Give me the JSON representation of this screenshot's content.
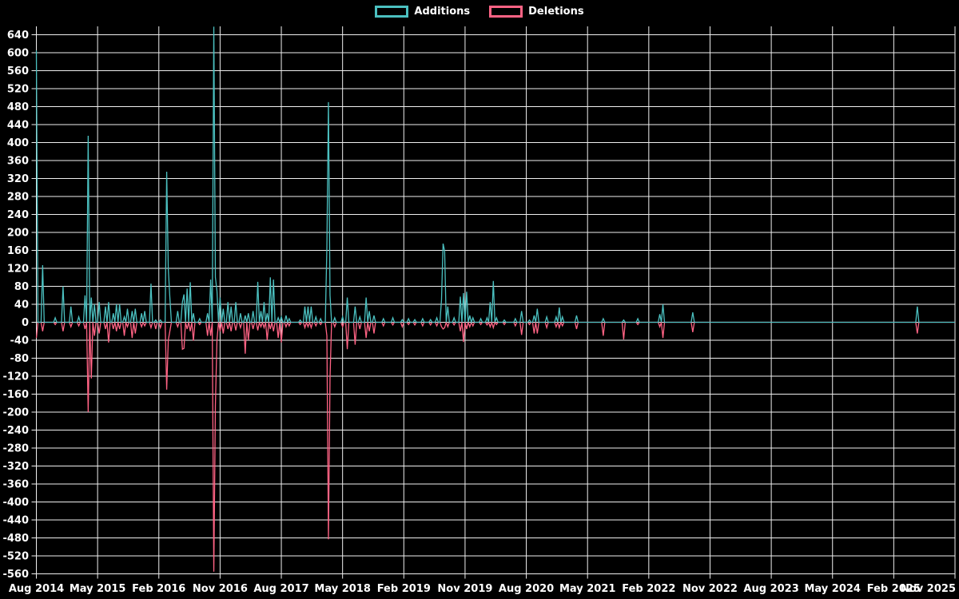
{
  "chart_data": {
    "type": "line",
    "title": "",
    "background_color": "#000000",
    "grid_color": "#efefef",
    "text_color": "#ffffff",
    "series": [
      {
        "name": "Additions",
        "color": "#4bc0c0"
      },
      {
        "name": "Deletions",
        "color": "#ff6384"
      }
    ],
    "legend_position": "top-center",
    "x_axis": {
      "tick_labels": [
        "Aug 2014",
        "May 2015",
        "Feb 2016",
        "Nov 2016",
        "Aug 2017",
        "May 2018",
        "Feb 2019",
        "Nov 2019",
        "Aug 2020",
        "May 2021",
        "Feb 2022",
        "Nov 2022",
        "Aug 2023",
        "May 2024",
        "Feb 2025",
        "Nov 2025"
      ],
      "weeks_per_tick": 39,
      "total_weeks": 585
    },
    "y_axis": {
      "min": -560,
      "max": 640,
      "step": 40,
      "tick_labels": [
        640,
        600,
        560,
        520,
        480,
        440,
        400,
        360,
        320,
        280,
        240,
        200,
        160,
        120,
        80,
        40,
        0,
        -40,
        -80,
        -120,
        -160,
        -200,
        -240,
        -280,
        -320,
        -360,
        -400,
        -440,
        -480,
        -520,
        -560
      ]
    },
    "baseline": 0,
    "events_format": [
      "week_index",
      "additions",
      "deletions"
    ],
    "events": [
      [
        0,
        605,
        -35
      ],
      [
        4,
        127,
        -20
      ],
      [
        12,
        10,
        -5
      ],
      [
        17,
        80,
        -20
      ],
      [
        22,
        35,
        -10
      ],
      [
        27,
        12,
        -8
      ],
      [
        31,
        60,
        -15
      ],
      [
        33,
        415,
        -200
      ],
      [
        35,
        55,
        -125
      ],
      [
        37,
        40,
        -30
      ],
      [
        40,
        45,
        -25
      ],
      [
        44,
        35,
        -15
      ],
      [
        46,
        45,
        -45
      ],
      [
        49,
        20,
        -15
      ],
      [
        51,
        40,
        -20
      ],
      [
        53,
        40,
        -15
      ],
      [
        56,
        12,
        -30
      ],
      [
        58,
        30,
        -10
      ],
      [
        61,
        25,
        -35
      ],
      [
        63,
        30,
        -25
      ],
      [
        67,
        20,
        -10
      ],
      [
        69,
        25,
        -8
      ],
      [
        73,
        86,
        -12
      ],
      [
        76,
        5,
        -15
      ],
      [
        79,
        5,
        -12
      ],
      [
        83,
        335,
        -150
      ],
      [
        84,
        120,
        -40
      ],
      [
        85,
        56,
        -20
      ],
      [
        90,
        25,
        -10
      ],
      [
        93,
        45,
        -60
      ],
      [
        94,
        62,
        -58
      ],
      [
        96,
        75,
        -15
      ],
      [
        98,
        89,
        -20
      ],
      [
        100,
        20,
        -41
      ],
      [
        104,
        8,
        -5
      ],
      [
        109,
        20,
        -30
      ],
      [
        111,
        95,
        -30
      ],
      [
        113,
        658,
        -555
      ],
      [
        114,
        100,
        -185
      ],
      [
        115,
        70,
        -40
      ],
      [
        117,
        55,
        -20
      ],
      [
        119,
        30,
        -25
      ],
      [
        122,
        45,
        -15
      ],
      [
        124,
        35,
        -20
      ],
      [
        127,
        45,
        -18
      ],
      [
        130,
        20,
        -12
      ],
      [
        133,
        15,
        -70
      ],
      [
        135,
        20,
        -40
      ],
      [
        138,
        25,
        -15
      ],
      [
        141,
        90,
        -18
      ],
      [
        143,
        25,
        -10
      ],
      [
        145,
        45,
        -12
      ],
      [
        147,
        20,
        -40
      ],
      [
        149,
        100,
        -15
      ],
      [
        151,
        95,
        -20
      ],
      [
        154,
        10,
        -35
      ],
      [
        156,
        12,
        -45
      ],
      [
        159,
        15,
        -10
      ],
      [
        161,
        8,
        -8
      ],
      [
        168,
        5,
        -5
      ],
      [
        171,
        35,
        -12
      ],
      [
        173,
        35,
        -10
      ],
      [
        175,
        35,
        -12
      ],
      [
        178,
        12,
        -8
      ],
      [
        181,
        8,
        -5
      ],
      [
        185,
        165,
        -30
      ],
      [
        186,
        490,
        -483
      ],
      [
        187,
        60,
        -125
      ],
      [
        190,
        10,
        -10
      ],
      [
        195,
        12,
        -10
      ],
      [
        198,
        55,
        -60
      ],
      [
        203,
        35,
        -50
      ],
      [
        206,
        12,
        -15
      ],
      [
        210,
        55,
        -35
      ],
      [
        212,
        25,
        -20
      ],
      [
        215,
        15,
        -25
      ],
      [
        221,
        8,
        -8
      ],
      [
        227,
        10,
        -6
      ],
      [
        233,
        6,
        -10
      ],
      [
        237,
        8,
        -5
      ],
      [
        241,
        6,
        -6
      ],
      [
        246,
        8,
        -8
      ],
      [
        251,
        6,
        -6
      ],
      [
        255,
        10,
        -8
      ],
      [
        258,
        50,
        -10
      ],
      [
        259,
        175,
        -15
      ],
      [
        260,
        158,
        -12
      ],
      [
        262,
        35,
        -10
      ],
      [
        266,
        10,
        -6
      ],
      [
        270,
        57,
        -20
      ],
      [
        272,
        65,
        -44
      ],
      [
        274,
        68,
        -15
      ],
      [
        276,
        15,
        -10
      ],
      [
        278,
        10,
        -8
      ],
      [
        283,
        8,
        -5
      ],
      [
        287,
        10,
        -6
      ],
      [
        289,
        45,
        -10
      ],
      [
        291,
        92,
        -12
      ],
      [
        293,
        10,
        -5
      ],
      [
        298,
        5,
        -5
      ],
      [
        305,
        8,
        -8
      ],
      [
        309,
        25,
        -28
      ],
      [
        314,
        5,
        -5
      ],
      [
        317,
        15,
        -25
      ],
      [
        319,
        30,
        -25
      ],
      [
        325,
        12,
        -12
      ],
      [
        331,
        12,
        -10
      ],
      [
        333,
        33,
        -12
      ],
      [
        335,
        12,
        -8
      ],
      [
        344,
        15,
        -15
      ],
      [
        361,
        8,
        -30
      ],
      [
        374,
        5,
        -38
      ],
      [
        383,
        8,
        -5
      ],
      [
        397,
        18,
        -10
      ],
      [
        399,
        40,
        -35
      ],
      [
        418,
        22,
        -22
      ],
      [
        561,
        35,
        -25
      ]
    ]
  }
}
